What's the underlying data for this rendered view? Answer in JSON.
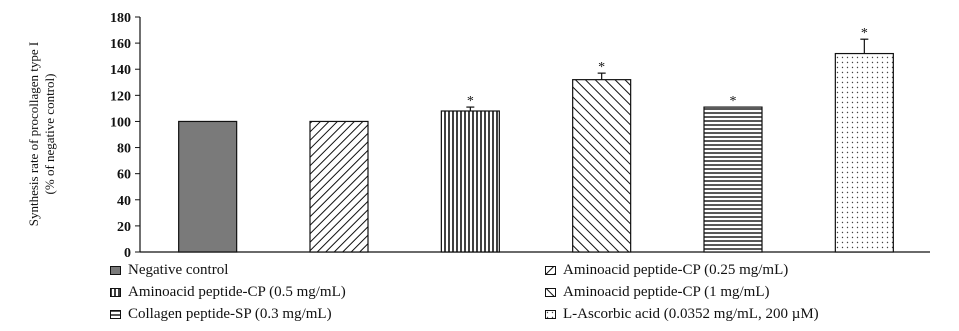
{
  "chart_data": {
    "type": "bar",
    "ylabel_line1": "Synthesis rate of procollagen type I",
    "ylabel_line2": "(% of negative control)",
    "xlabel": "",
    "ylim": [
      0,
      180
    ],
    "yticks": [
      0,
      20,
      40,
      60,
      80,
      100,
      120,
      140,
      160,
      180
    ],
    "categories": [
      "Negative control",
      "Aminoacid peptide-CP (0.25 mg/mL)",
      "Aminoacid peptide-CP (0.5 mg/mL)",
      "Aminoacid peptide-CP (1 mg/mL)",
      "Collagen peptide-SP (0.3 mg/mL)",
      "L-Ascorbic acid (0.0352 mg/mL, 200 µM)"
    ],
    "values": [
      100,
      100,
      108,
      132,
      111,
      152
    ],
    "errors": [
      0,
      0,
      3,
      5,
      0,
      11
    ],
    "significance": [
      "",
      "",
      "*",
      "*",
      "*",
      "*"
    ],
    "patterns": [
      "solid-gray",
      "diagonal-up",
      "vertical",
      "diagonal-down",
      "horizontal",
      "dots"
    ],
    "grid": false,
    "legend_position": "bottom"
  }
}
